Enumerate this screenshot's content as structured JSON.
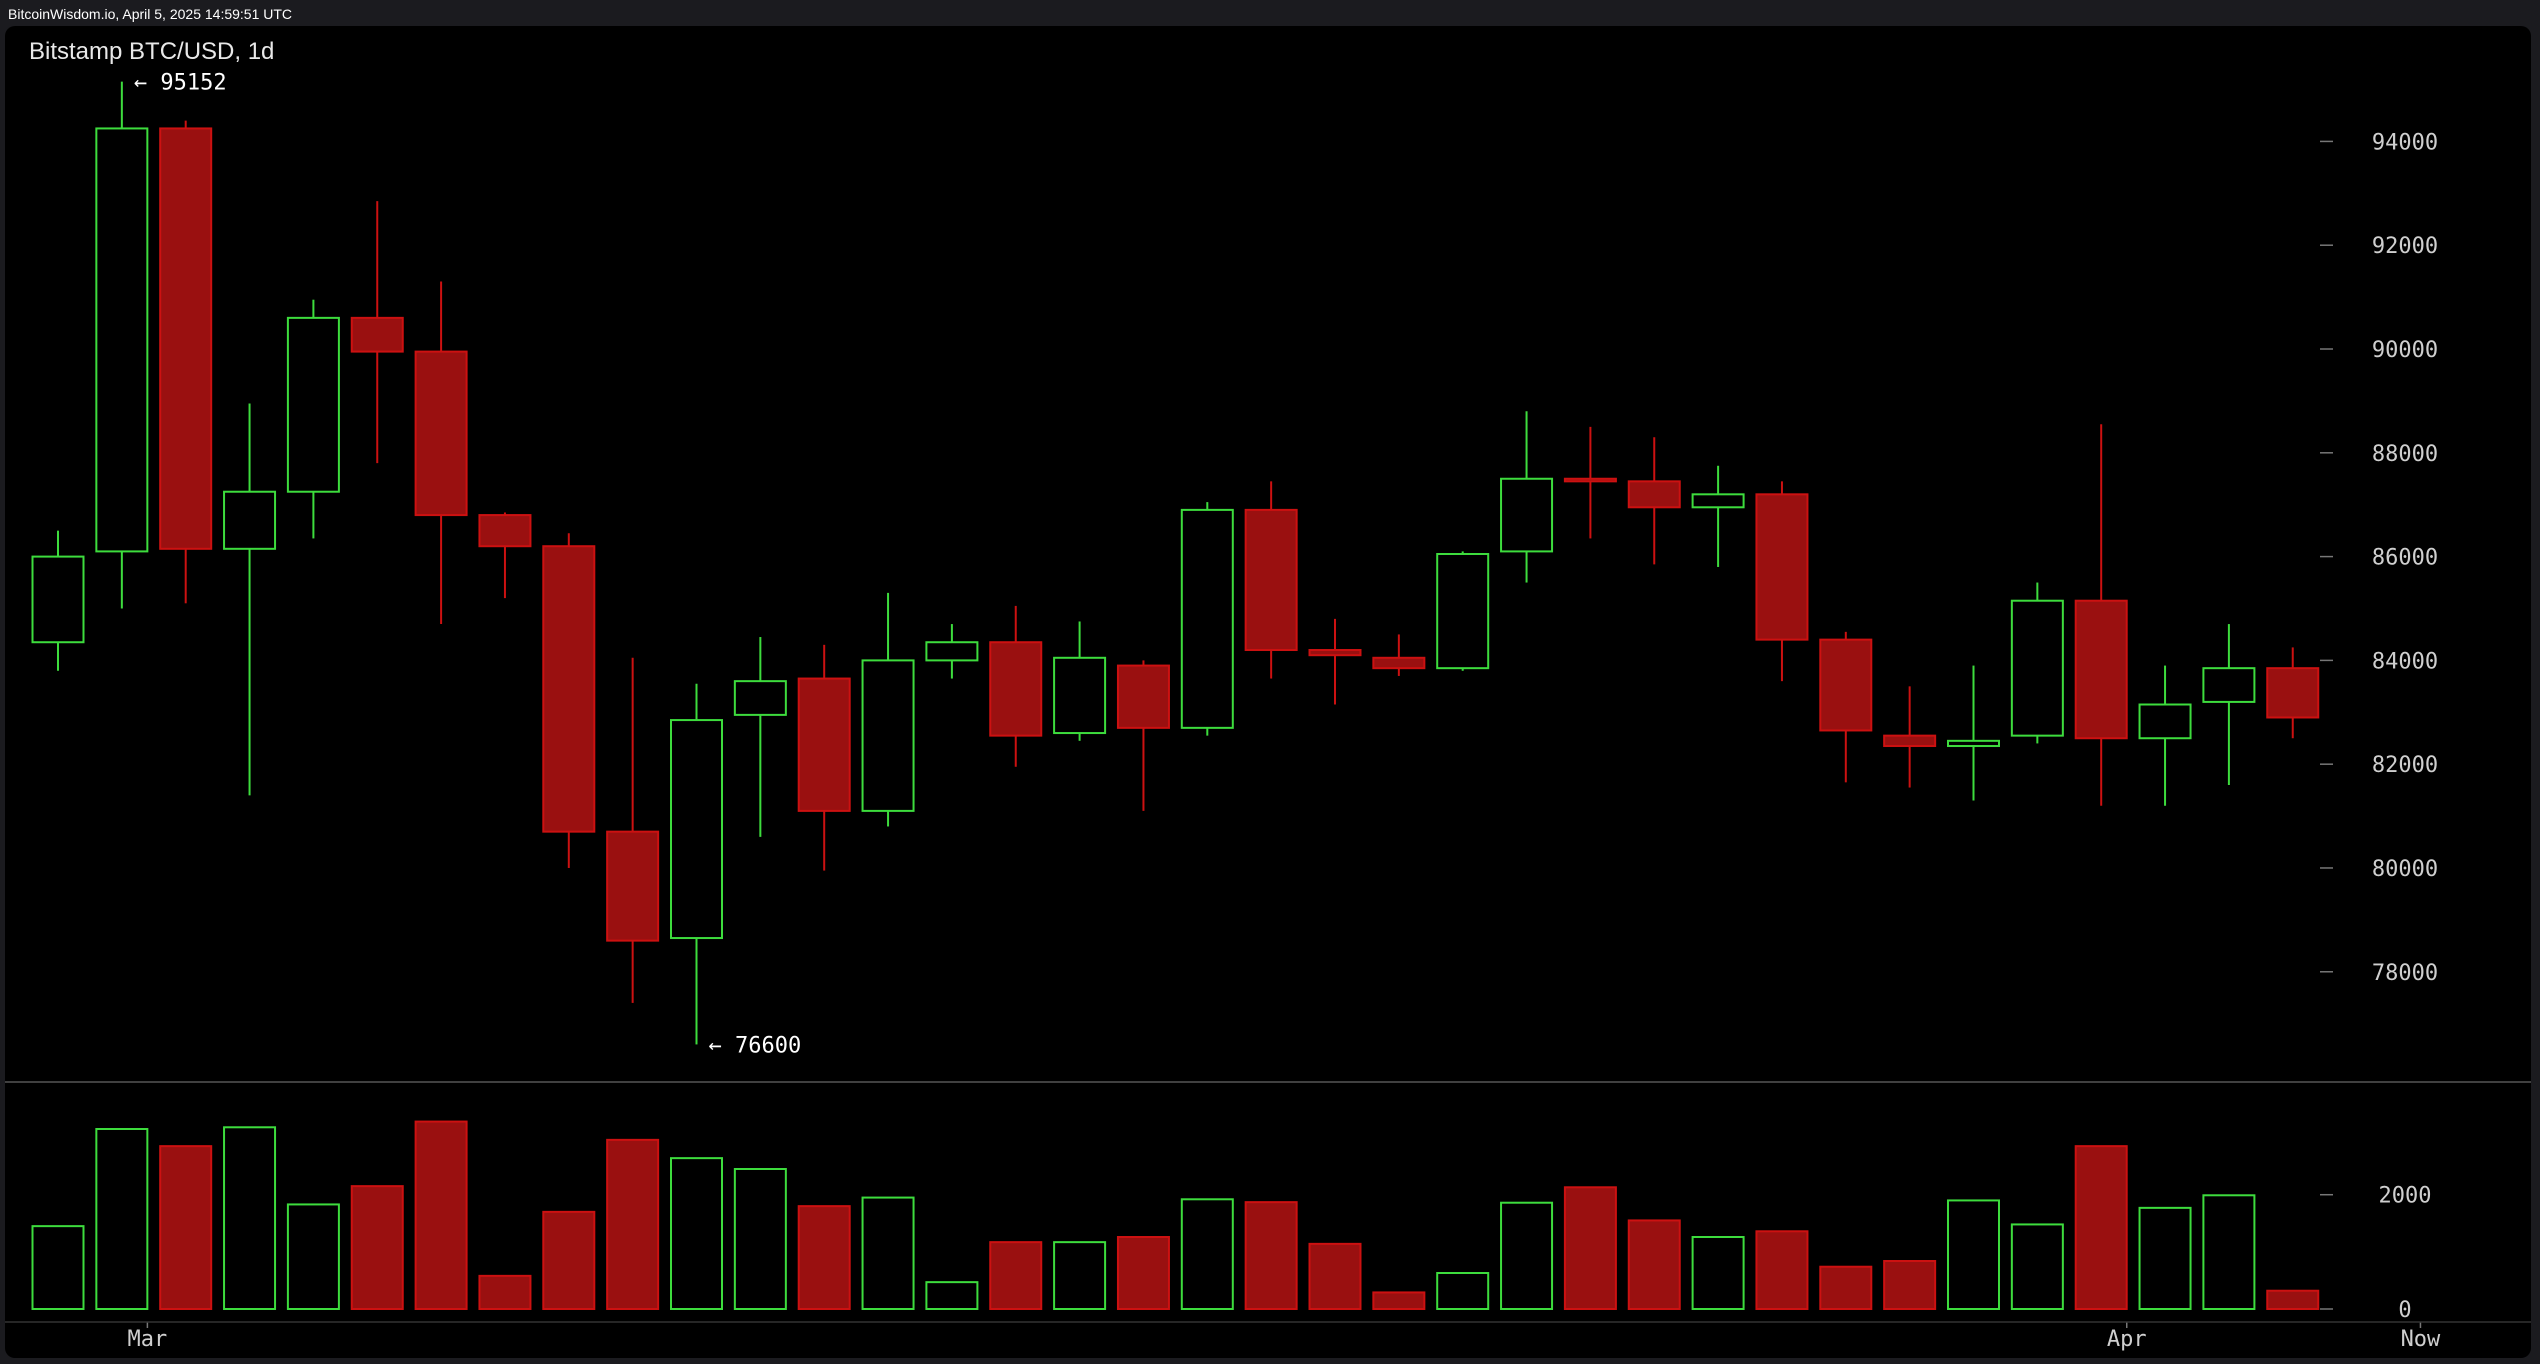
{
  "header": {
    "timestamp_text": "BitcoinWisdom.io, April 5, 2025 14:59:51 UTC"
  },
  "chart_title": "Bitstamp BTC/USD, 1d",
  "colors": {
    "up": "#3ddc3d",
    "down": "#cc1111",
    "down_fill": "#9a1010",
    "background": "#000000",
    "axis_text": "#cfcfcf"
  },
  "chart_data": {
    "type": "candlestick",
    "title": "Bitstamp BTC/USD, 1d",
    "interval": "1d",
    "price_ylim": [
      76300,
      95800
    ],
    "price_ticks": [
      "94000",
      "92000",
      "90000",
      "88000",
      "86000",
      "84000",
      "82000",
      "80000",
      "78000"
    ],
    "volume_ylim": [
      0,
      3500
    ],
    "volume_ticks": [
      "2000",
      "0"
    ],
    "x_tick_labels": [
      {
        "label": "Mar",
        "index": 1.4
      },
      {
        "label": "Apr",
        "index": 32.4
      },
      {
        "label": "Now",
        "index": 37.0
      }
    ],
    "annotations": [
      {
        "text": "← 95152",
        "index": 1,
        "price": 95152
      },
      {
        "text": "← 76600",
        "index": 10,
        "price": 76600
      }
    ],
    "candles": [
      {
        "open": 84350,
        "high": 86500,
        "low": 83800,
        "close": 86000,
        "volume": 1450
      },
      {
        "open": 86100,
        "high": 95152,
        "low": 85000,
        "close": 94250,
        "volume": 3150
      },
      {
        "open": 94250,
        "high": 94400,
        "low": 85100,
        "close": 86150,
        "volume": 2850
      },
      {
        "open": 86150,
        "high": 88950,
        "low": 81400,
        "close": 87250,
        "volume": 3180
      },
      {
        "open": 87250,
        "high": 90950,
        "low": 86350,
        "close": 90600,
        "volume": 1830
      },
      {
        "open": 90600,
        "high": 92850,
        "low": 87800,
        "close": 89950,
        "volume": 2150
      },
      {
        "open": 89950,
        "high": 91300,
        "low": 84700,
        "close": 86800,
        "volume": 3280
      },
      {
        "open": 86800,
        "high": 86850,
        "low": 85200,
        "close": 86200,
        "volume": 580
      },
      {
        "open": 86200,
        "high": 86450,
        "low": 80000,
        "close": 80700,
        "volume": 1700
      },
      {
        "open": 80700,
        "high": 84050,
        "low": 77400,
        "close": 78600,
        "volume": 2960
      },
      {
        "open": 78650,
        "high": 83550,
        "low": 76600,
        "close": 82850,
        "volume": 2640
      },
      {
        "open": 82950,
        "high": 84450,
        "low": 80600,
        "close": 83600,
        "volume": 2450
      },
      {
        "open": 83650,
        "high": 84300,
        "low": 79950,
        "close": 81100,
        "volume": 1800
      },
      {
        "open": 81100,
        "high": 85300,
        "low": 80800,
        "close": 84000,
        "volume": 1950
      },
      {
        "open": 84000,
        "high": 84700,
        "low": 83650,
        "close": 84350,
        "volume": 470
      },
      {
        "open": 84350,
        "high": 85050,
        "low": 81950,
        "close": 82550,
        "volume": 1170
      },
      {
        "open": 82600,
        "high": 84750,
        "low": 82450,
        "close": 84050,
        "volume": 1170
      },
      {
        "open": 83900,
        "high": 84000,
        "low": 81100,
        "close": 82700,
        "volume": 1260
      },
      {
        "open": 82700,
        "high": 87050,
        "low": 82550,
        "close": 86900,
        "volume": 1920
      },
      {
        "open": 86900,
        "high": 87450,
        "low": 83650,
        "close": 84200,
        "volume": 1870
      },
      {
        "open": 84200,
        "high": 84800,
        "low": 83150,
        "close": 84100,
        "volume": 1140
      },
      {
        "open": 84050,
        "high": 84500,
        "low": 83700,
        "close": 83850,
        "volume": 290
      },
      {
        "open": 83850,
        "high": 86100,
        "low": 83800,
        "close": 86050,
        "volume": 630
      },
      {
        "open": 86100,
        "high": 88800,
        "low": 85500,
        "close": 87500,
        "volume": 1860
      },
      {
        "open": 87500,
        "high": 88500,
        "low": 86350,
        "close": 87450,
        "volume": 2130
      },
      {
        "open": 87450,
        "high": 88300,
        "low": 85850,
        "close": 86950,
        "volume": 1550
      },
      {
        "open": 86950,
        "high": 87750,
        "low": 85800,
        "close": 87200,
        "volume": 1260
      },
      {
        "open": 87200,
        "high": 87450,
        "low": 83600,
        "close": 84400,
        "volume": 1360
      },
      {
        "open": 84400,
        "high": 84550,
        "low": 81650,
        "close": 82650,
        "volume": 740
      },
      {
        "open": 82550,
        "high": 83500,
        "low": 81550,
        "close": 82350,
        "volume": 840
      },
      {
        "open": 82350,
        "high": 83900,
        "low": 81300,
        "close": 82450,
        "volume": 1900
      },
      {
        "open": 82550,
        "high": 85500,
        "low": 82400,
        "close": 85150,
        "volume": 1480
      },
      {
        "open": 85150,
        "high": 88550,
        "low": 81200,
        "close": 82500,
        "volume": 2850
      },
      {
        "open": 82500,
        "high": 83900,
        "low": 81200,
        "close": 83150,
        "volume": 1770
      },
      {
        "open": 83200,
        "high": 84700,
        "low": 81600,
        "close": 83850,
        "volume": 1990
      },
      {
        "open": 83850,
        "high": 84250,
        "low": 82500,
        "close": 82900,
        "volume": 320
      }
    ]
  }
}
